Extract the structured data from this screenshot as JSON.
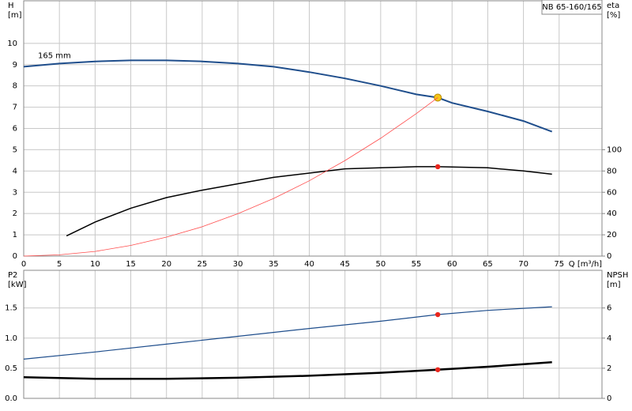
{
  "chart_data": [
    {
      "type": "line",
      "title": "NB 65-160/165",
      "ylabel": "H",
      "yunit": "[m]",
      "y2label": "eta",
      "y2unit": "[%]",
      "xlabel": "Q [m³/h]",
      "xlim": [
        0,
        81
      ],
      "xticks": [
        0,
        5,
        10,
        15,
        20,
        25,
        30,
        35,
        40,
        45,
        50,
        55,
        60,
        65,
        70,
        75
      ],
      "ylim": [
        0,
        12
      ],
      "yticks": [
        0,
        1,
        2,
        3,
        4,
        5,
        6,
        7,
        8,
        9,
        10
      ],
      "y2lim": [
        0,
        240
      ],
      "y2ticks": [
        0,
        20,
        40,
        60,
        80,
        100
      ],
      "grid": true,
      "series": [
        {
          "name": "165 mm",
          "color": "#1f4e8c",
          "width": 2,
          "x": [
            0,
            5,
            10,
            15,
            20,
            25,
            30,
            35,
            40,
            45,
            50,
            55,
            58,
            60,
            65,
            70,
            74
          ],
          "values": [
            8.9,
            9.05,
            9.15,
            9.2,
            9.2,
            9.15,
            9.05,
            8.9,
            8.65,
            8.35,
            8.0,
            7.6,
            7.45,
            7.2,
            6.8,
            6.35,
            5.85
          ],
          "duty": {
            "x": 58,
            "y": 7.45,
            "color": "#f5c518"
          }
        },
        {
          "color": "#000000",
          "width": 1.5,
          "axis": "y2",
          "x": [
            6,
            10,
            15,
            20,
            25,
            30,
            35,
            40,
            45,
            50,
            55,
            58,
            65,
            70,
            74
          ],
          "values": [
            19,
            32,
            45,
            55,
            62,
            68,
            74,
            78,
            82,
            83,
            84,
            84,
            83,
            80,
            77
          ],
          "duty": {
            "x": 58,
            "y": 84,
            "color": "#e8251c"
          }
        },
        {
          "color": "#ff4d4d",
          "width": 0.8,
          "x": [
            0,
            5,
            10,
            15,
            20,
            25,
            30,
            35,
            40,
            45,
            50,
            55,
            58
          ],
          "values": [
            0,
            0.06,
            0.22,
            0.5,
            0.89,
            1.38,
            1.99,
            2.71,
            3.54,
            4.49,
            5.54,
            6.7,
            7.45
          ]
        }
      ]
    },
    {
      "type": "line",
      "ylabel": "P2",
      "yunit": "[kW]",
      "y2label": "NPSH",
      "y2unit": "[m]",
      "xlim": [
        0,
        81
      ],
      "xticks": [
        0,
        5,
        10,
        15,
        20,
        25,
        30,
        35,
        40,
        45,
        50,
        55,
        60,
        65,
        70,
        75
      ],
      "xtick_labels": false,
      "ylim": [
        0,
        2.125
      ],
      "yticks": [
        {
          "value": 0,
          "label": "0.0"
        },
        0.5,
        {
          "value": 1,
          "label": "1.0"
        },
        1.5
      ],
      "y2lim": [
        0,
        8.5
      ],
      "y2ticks": [
        0,
        2,
        4,
        6
      ],
      "grid": true,
      "series": [
        {
          "color": "#1f4e8c",
          "width": 1.2,
          "x": [
            0,
            10,
            20,
            30,
            40,
            50,
            58,
            65,
            74
          ],
          "values": [
            0.65,
            0.77,
            0.9,
            1.03,
            1.16,
            1.28,
            1.39,
            1.46,
            1.52
          ],
          "duty": {
            "x": 58,
            "y": 1.39,
            "color": "#e8251c"
          }
        },
        {
          "color": "#000000",
          "width": 2.5,
          "axis": "y2",
          "x": [
            0,
            10,
            20,
            30,
            40,
            50,
            58,
            65,
            74
          ],
          "values": [
            1.4,
            1.3,
            1.3,
            1.37,
            1.5,
            1.7,
            1.9,
            2.1,
            2.4
          ],
          "duty": {
            "x": 58,
            "y": 1.9,
            "color": "#e8251c"
          }
        }
      ]
    }
  ]
}
